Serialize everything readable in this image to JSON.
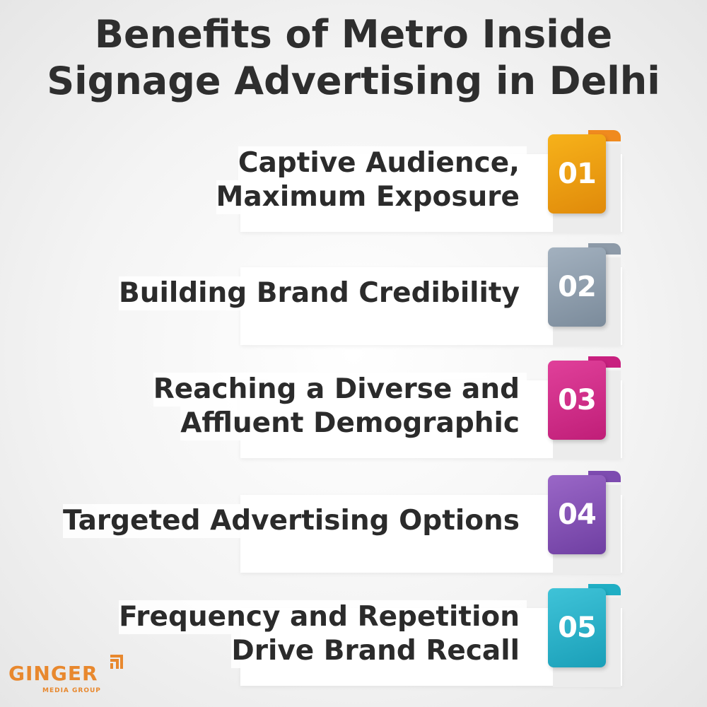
{
  "title": {
    "line1": "Benefits of Metro Inside",
    "line2": "Signage Advertising in Delhi"
  },
  "benefits": [
    {
      "number": "01",
      "line1": "Captive Audience,",
      "line2": "Maximum Exposure",
      "color_top": "#f7b21a",
      "color_bottom": "#e08a0a",
      "tab_color": "#f08a1e"
    },
    {
      "number": "02",
      "line1": "Building Brand Credibility",
      "line2": "",
      "color_top": "#a3b1bf",
      "color_bottom": "#7b8b9b",
      "tab_color": "#8d9aa8"
    },
    {
      "number": "03",
      "line1": "Reaching a Diverse and",
      "line2": "Affluent Demographic",
      "color_top": "#e0409a",
      "color_bottom": "#c01e78",
      "tab_color": "#c8207f"
    },
    {
      "number": "04",
      "line1": "Targeted Advertising Options",
      "line2": "",
      "color_top": "#9a67c7",
      "color_bottom": "#6f3fa2",
      "tab_color": "#7d4bb0"
    },
    {
      "number": "05",
      "line1": "Frequency and Repetition",
      "line2": "Drive Brand Recall",
      "color_top": "#3fc3d8",
      "color_bottom": "#1a9fb8",
      "tab_color": "#1faec4"
    }
  ],
  "logo": {
    "name": "GINGER",
    "subtitle": "MEDIA GROUP",
    "icon": "signal-arcs-icon",
    "color": "#e8882e"
  }
}
